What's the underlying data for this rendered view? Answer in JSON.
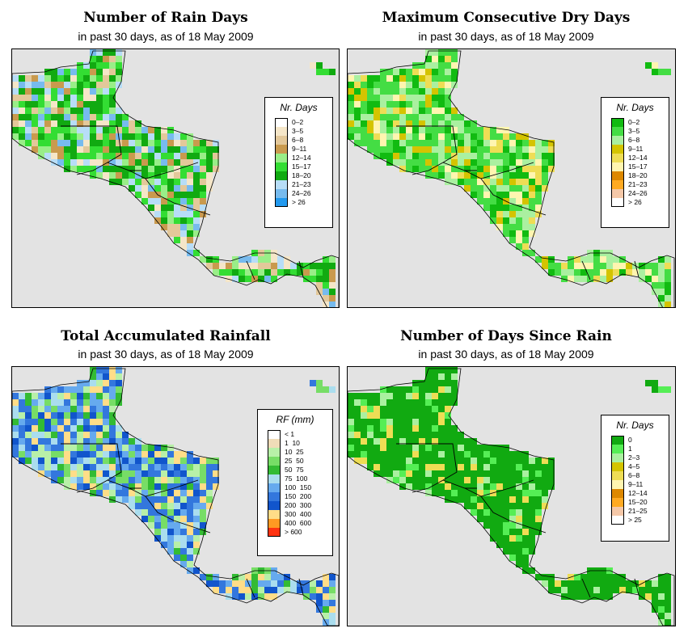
{
  "panels": [
    {
      "id": "rain-days",
      "title": "Number of Rain Days",
      "subtitle": "in past 30 days, as of  18 May 2009",
      "legend_title": "Nr. Days",
      "legend": [
        {
          "label": "0–2",
          "color": "#ffffff"
        },
        {
          "label": "3–5",
          "color": "#f5e6c8"
        },
        {
          "label": "6–8",
          "color": "#e3c89a"
        },
        {
          "label": "9–11",
          "color": "#c99a4e"
        },
        {
          "label": "12–14",
          "color": "#99ee88"
        },
        {
          "label": "15–17",
          "color": "#33dd33"
        },
        {
          "label": "18–20",
          "color": "#11aa11"
        },
        {
          "label": "21–23",
          "color": "#b7ddf7"
        },
        {
          "label": "24–26",
          "color": "#77bbee"
        },
        {
          "label": "> 26",
          "color": "#2299ee"
        }
      ],
      "palette": [
        "#11aa11",
        "#33dd33",
        "#99ee88",
        "#11aa11",
        "#33dd33",
        "#c99a4e",
        "#e3c89a",
        "#f5e6c8",
        "#77bbee",
        "#b7ddf7"
      ]
    },
    {
      "id": "max-dry-days",
      "title": "Maximum Consecutive Dry Days",
      "subtitle": "in past 30 days, as of  18 May 2009",
      "legend_title": "Nr. Days",
      "legend": [
        {
          "label": "0–2",
          "color": "#11bb11"
        },
        {
          "label": "3–5",
          "color": "#44dd44"
        },
        {
          "label": "6–8",
          "color": "#aaf0a0"
        },
        {
          "label": "9–11",
          "color": "#d4c400"
        },
        {
          "label": "12–14",
          "color": "#eedd55"
        },
        {
          "label": "15–17",
          "color": "#fff5b0"
        },
        {
          "label": "18–20",
          "color": "#dd8800"
        },
        {
          "label": "21–23",
          "color": "#ffaa22"
        },
        {
          "label": "24–26",
          "color": "#f5c8a8"
        },
        {
          "label": "> 26",
          "color": "#ffffff"
        }
      ],
      "palette": [
        "#44dd44",
        "#44dd44",
        "#11bb11",
        "#aaf0a0",
        "#44dd44",
        "#11bb11",
        "#d4c400",
        "#eedd55",
        "#fff5b0",
        "#aaf0a0"
      ]
    },
    {
      "id": "total-rainfall",
      "title": "Total Accumulated Rainfall",
      "subtitle": "in past 30 days, as of  18 May 2009",
      "legend_title": "RF (mm)",
      "legend": [
        {
          "label": "< 1",
          "color": "#ffffff"
        },
        {
          "label": "1  10",
          "color": "#f0dcb8"
        },
        {
          "label": "10  25",
          "color": "#b8f0a8"
        },
        {
          "label": "25  50",
          "color": "#77dd66"
        },
        {
          "label": "50  75",
          "color": "#33bb33"
        },
        {
          "label": "75  100",
          "color": "#aaddee"
        },
        {
          "label": "100  150",
          "color": "#66aaee"
        },
        {
          "label": "150  200",
          "color": "#3377dd"
        },
        {
          "label": "200  300",
          "color": "#1155cc"
        },
        {
          "label": "300  400",
          "color": "#ffdd88"
        },
        {
          "label": "400  600",
          "color": "#ff9922"
        },
        {
          "label": "> 600",
          "color": "#ff3311"
        }
      ],
      "palette": [
        "#66aaee",
        "#3377dd",
        "#66aaee",
        "#aaddee",
        "#77dd66",
        "#b8f0a8",
        "#1155cc",
        "#3377dd",
        "#ffdd88",
        "#33bb33"
      ]
    },
    {
      "id": "days-since-rain",
      "title": "Number of Days Since Rain",
      "subtitle": "in past 30 days, as of  18 May 2009",
      "legend_title": "Nr. Days",
      "legend": [
        {
          "label": "0",
          "color": "#11aa11"
        },
        {
          "label": "1",
          "color": "#55ee55"
        },
        {
          "label": "2–3",
          "color": "#aaf0a0"
        },
        {
          "label": "4–5",
          "color": "#d4c400"
        },
        {
          "label": "6–8",
          "color": "#eedd55"
        },
        {
          "label": "9–11",
          "color": "#fff5b0"
        },
        {
          "label": "12–14",
          "color": "#dd8800"
        },
        {
          "label": "15–20",
          "color": "#ffaa22"
        },
        {
          "label": "21–25",
          "color": "#f5c8a8"
        },
        {
          "label": "> 25",
          "color": "#ffffff"
        }
      ],
      "palette": [
        "#11aa11",
        "#11aa11",
        "#11aa11",
        "#11aa11",
        "#55ee55",
        "#11aa11",
        "#11aa11",
        "#aaf0a0",
        "#eedd55",
        "#11aa11"
      ]
    }
  ]
}
